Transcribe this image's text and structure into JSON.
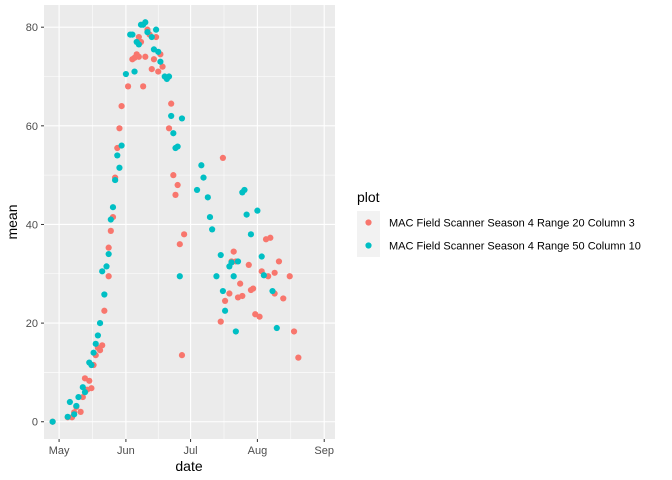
{
  "chart_data": {
    "type": "scatter",
    "xlabel": "date",
    "ylabel": "mean",
    "x_ticks": [
      {
        "date": "2017-05-01",
        "label": "May"
      },
      {
        "date": "2017-06-01",
        "label": "Jun"
      },
      {
        "date": "2017-07-01",
        "label": "Jul"
      },
      {
        "date": "2017-08-01",
        "label": "Aug"
      },
      {
        "date": "2017-09-01",
        "label": "Sep"
      }
    ],
    "y_ticks": [
      0,
      20,
      40,
      60,
      80
    ],
    "xlim": [
      "2017-04-24",
      "2017-09-06"
    ],
    "ylim": [
      -3.5,
      84.5
    ],
    "grid": true,
    "legend": {
      "title": "plot",
      "position": "right"
    },
    "series": [
      {
        "name": "MAC Field Scanner Season 4 Range 20 Column 3",
        "color": "#F8766D",
        "points": [
          [
            "2017-04-28",
            0.0
          ],
          [
            "2017-05-05",
            0.9
          ],
          [
            "2017-05-07",
            0.9
          ],
          [
            "2017-05-08",
            1.9
          ],
          [
            "2017-05-09",
            3.0
          ],
          [
            "2017-05-11",
            2.0
          ],
          [
            "2017-05-12",
            5.0
          ],
          [
            "2017-05-13",
            8.8
          ],
          [
            "2017-05-14",
            6.5
          ],
          [
            "2017-05-15",
            8.3
          ],
          [
            "2017-05-16",
            6.8
          ],
          [
            "2017-05-17",
            11.5
          ],
          [
            "2017-05-18",
            13.5
          ],
          [
            "2017-05-19",
            15.0
          ],
          [
            "2017-05-20",
            14.5
          ],
          [
            "2017-05-21",
            15.5
          ],
          [
            "2017-05-22",
            22.5
          ],
          [
            "2017-05-24",
            29.5
          ],
          [
            "2017-05-24",
            35.3
          ],
          [
            "2017-05-25",
            38.7
          ],
          [
            "2017-05-26",
            41.5
          ],
          [
            "2017-05-27",
            49.5
          ],
          [
            "2017-05-28",
            55.5
          ],
          [
            "2017-05-29",
            59.5
          ],
          [
            "2017-05-30",
            64.0
          ],
          [
            "2017-06-02",
            68.0
          ],
          [
            "2017-06-04",
            73.5
          ],
          [
            "2017-06-05",
            73.8
          ],
          [
            "2017-06-06",
            74.5
          ],
          [
            "2017-06-07",
            74.0
          ],
          [
            "2017-06-07",
            78.0
          ],
          [
            "2017-06-08",
            77.0
          ],
          [
            "2017-06-09",
            68.0
          ],
          [
            "2017-06-10",
            74.0
          ],
          [
            "2017-06-11",
            79.5
          ],
          [
            "2017-06-12",
            78.5
          ],
          [
            "2017-06-13",
            71.5
          ],
          [
            "2017-06-14",
            73.5
          ],
          [
            "2017-06-15",
            78.0
          ],
          [
            "2017-06-16",
            71.0
          ],
          [
            "2017-06-17",
            74.5
          ],
          [
            "2017-06-18",
            72.0
          ],
          [
            "2017-06-21",
            59.5
          ],
          [
            "2017-06-22",
            64.5
          ],
          [
            "2017-06-23",
            50.0
          ],
          [
            "2017-06-24",
            46.0
          ],
          [
            "2017-06-25",
            48.0
          ],
          [
            "2017-06-26",
            36.0
          ],
          [
            "2017-06-27",
            13.5
          ],
          [
            "2017-06-28",
            38.0
          ],
          [
            "2017-07-15",
            20.3
          ],
          [
            "2017-07-16",
            53.5
          ],
          [
            "2017-07-17",
            24.5
          ],
          [
            "2017-07-19",
            26.0
          ],
          [
            "2017-07-20",
            32.5
          ],
          [
            "2017-07-21",
            34.5
          ],
          [
            "2017-07-22",
            32.5
          ],
          [
            "2017-07-23",
            25.2
          ],
          [
            "2017-07-24",
            28.0
          ],
          [
            "2017-07-25",
            25.5
          ],
          [
            "2017-07-28",
            31.8
          ],
          [
            "2017-07-29",
            26.7
          ],
          [
            "2017-07-30",
            27.0
          ],
          [
            "2017-07-31",
            21.8
          ],
          [
            "2017-08-02",
            21.3
          ],
          [
            "2017-08-03",
            30.5
          ],
          [
            "2017-08-05",
            37.0
          ],
          [
            "2017-08-06",
            29.5
          ],
          [
            "2017-08-07",
            37.3
          ],
          [
            "2017-08-09",
            26.0
          ],
          [
            "2017-08-09",
            30.2
          ],
          [
            "2017-08-11",
            32.5
          ],
          [
            "2017-08-13",
            25.0
          ],
          [
            "2017-08-16",
            29.5
          ],
          [
            "2017-08-18",
            18.3
          ],
          [
            "2017-08-20",
            13.0
          ]
        ]
      },
      {
        "name": "MAC Field Scanner Season 4 Range 50 Column 10",
        "color": "#00BFC4",
        "points": [
          [
            "2017-04-28",
            0.0
          ],
          [
            "2017-05-05",
            1.0
          ],
          [
            "2017-05-06",
            4.0
          ],
          [
            "2017-05-08",
            1.5
          ],
          [
            "2017-05-09",
            3.2
          ],
          [
            "2017-05-10",
            5.0
          ],
          [
            "2017-05-12",
            7.0
          ],
          [
            "2017-05-13",
            6.0
          ],
          [
            "2017-05-15",
            12.0
          ],
          [
            "2017-05-16",
            11.5
          ],
          [
            "2017-05-17",
            14.0
          ],
          [
            "2017-05-18",
            15.8
          ],
          [
            "2017-05-19",
            17.5
          ],
          [
            "2017-05-20",
            20.0
          ],
          [
            "2017-05-21",
            30.5
          ],
          [
            "2017-05-22",
            25.8
          ],
          [
            "2017-05-23",
            31.5
          ],
          [
            "2017-05-24",
            34.0
          ],
          [
            "2017-05-25",
            41.0
          ],
          [
            "2017-05-26",
            43.5
          ],
          [
            "2017-05-27",
            49.0
          ],
          [
            "2017-05-28",
            54.0
          ],
          [
            "2017-05-29",
            51.5
          ],
          [
            "2017-05-30",
            56.0
          ],
          [
            "2017-06-01",
            70.5
          ],
          [
            "2017-06-03",
            78.5
          ],
          [
            "2017-06-04",
            78.5
          ],
          [
            "2017-06-05",
            71.0
          ],
          [
            "2017-06-06",
            77.0
          ],
          [
            "2017-06-07",
            76.5
          ],
          [
            "2017-06-08",
            80.5
          ],
          [
            "2017-06-09",
            80.5
          ],
          [
            "2017-06-10",
            81.0
          ],
          [
            "2017-06-11",
            79.0
          ],
          [
            "2017-06-13",
            78.0
          ],
          [
            "2017-06-14",
            75.5
          ],
          [
            "2017-06-15",
            79.5
          ],
          [
            "2017-06-16",
            75.0
          ],
          [
            "2017-06-17",
            73.0
          ],
          [
            "2017-06-19",
            70.0
          ],
          [
            "2017-06-20",
            69.5
          ],
          [
            "2017-06-21",
            70.0
          ],
          [
            "2017-06-22",
            62.0
          ],
          [
            "2017-06-23",
            58.5
          ],
          [
            "2017-06-24",
            55.5
          ],
          [
            "2017-06-25",
            55.8
          ],
          [
            "2017-06-26",
            29.5
          ],
          [
            "2017-06-27",
            61.5
          ],
          [
            "2017-07-04",
            47.0
          ],
          [
            "2017-07-06",
            52.0
          ],
          [
            "2017-07-07",
            49.5
          ],
          [
            "2017-07-09",
            45.5
          ],
          [
            "2017-07-10",
            41.5
          ],
          [
            "2017-07-11",
            39.0
          ],
          [
            "2017-07-13",
            29.5
          ],
          [
            "2017-07-15",
            33.8
          ],
          [
            "2017-07-16",
            26.5
          ],
          [
            "2017-07-17",
            22.5
          ],
          [
            "2017-07-19",
            31.5
          ],
          [
            "2017-07-20",
            32.3
          ],
          [
            "2017-07-21",
            29.5
          ],
          [
            "2017-07-22",
            18.3
          ],
          [
            "2017-07-23",
            32.5
          ],
          [
            "2017-07-25",
            46.5
          ],
          [
            "2017-07-26",
            47.0
          ],
          [
            "2017-07-27",
            42.0
          ],
          [
            "2017-07-29",
            38.0
          ],
          [
            "2017-08-01",
            42.8
          ],
          [
            "2017-08-03",
            33.5
          ],
          [
            "2017-08-04",
            29.7
          ],
          [
            "2017-08-08",
            26.5
          ],
          [
            "2017-08-10",
            19.0
          ]
        ]
      }
    ]
  }
}
